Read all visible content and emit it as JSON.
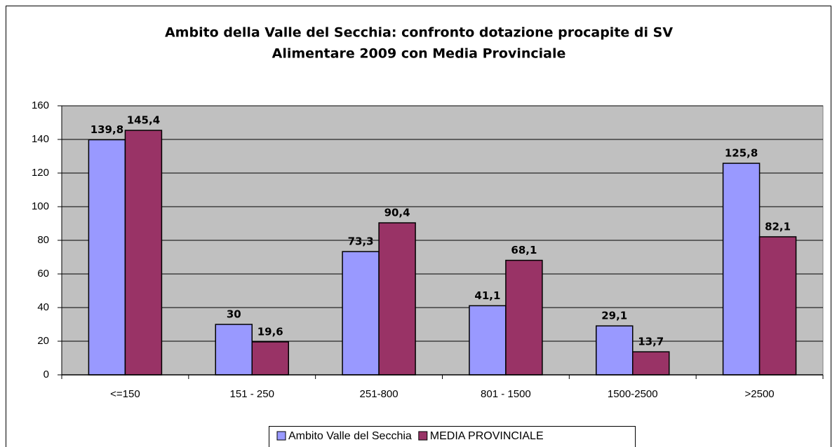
{
  "chart_data": {
    "type": "bar",
    "title": [
      "Ambito della Valle del Secchia: confronto dotazione procapite di SV",
      "Alimentare 2009 con Media Provinciale"
    ],
    "categories": [
      "<=150",
      "151 - 250",
      "251-800",
      "801 - 1500",
      "1500-2500",
      ">2500"
    ],
    "series": [
      {
        "name": "Ambito Valle del Secchia",
        "color": "#9999ff",
        "values": [
          139.8,
          30,
          73.3,
          41.1,
          29.1,
          125.8
        ],
        "value_labels": [
          "139,8",
          "30",
          "73,3",
          "41,1",
          "29,1",
          "125,8"
        ]
      },
      {
        "name": "MEDIA PROVINCIALE",
        "color": "#993366",
        "values": [
          145.4,
          19.6,
          90.4,
          68.1,
          13.7,
          82.1
        ],
        "value_labels": [
          "145,4",
          "19,6",
          "90,4",
          "68,1",
          "13,7",
          "82,1"
        ]
      }
    ],
    "ylim": [
      0,
      160
    ],
    "yticks": [
      0,
      20,
      40,
      60,
      80,
      100,
      120,
      140,
      160
    ],
    "grid": true,
    "legend": "bottom"
  }
}
